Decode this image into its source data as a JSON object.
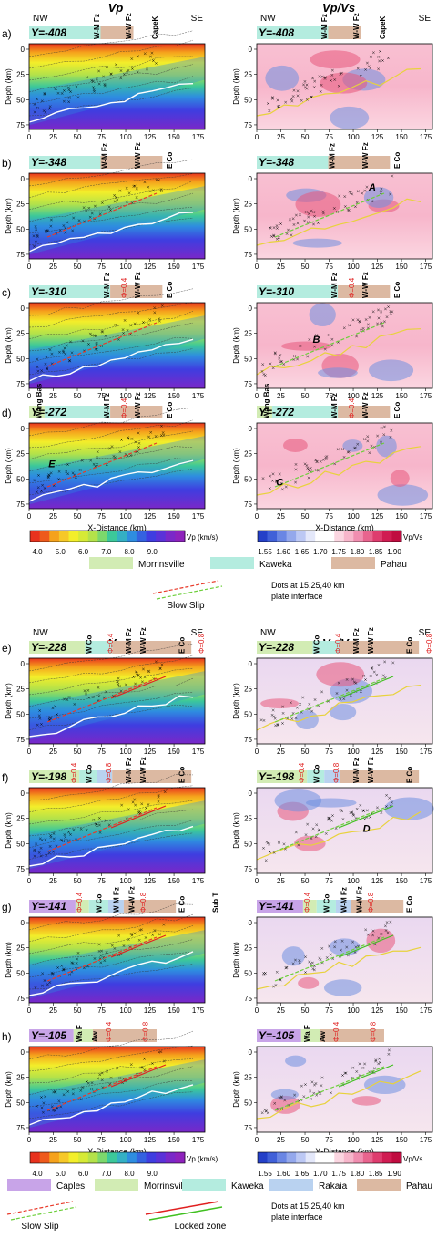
{
  "columns": {
    "vp": "Vp",
    "vpvs": "Vp/Vs"
  },
  "orientation": {
    "left": "NW",
    "right": "SE"
  },
  "axes": {
    "ylabel": "Depth (km)",
    "xlabel": "X-Distance (km)",
    "xticks": [
      "0",
      "25",
      "50",
      "75",
      "100",
      "125",
      "150",
      "175"
    ],
    "yticks": [
      "0",
      "25",
      "50",
      "75"
    ]
  },
  "colors": {
    "morrinsville": "#d2ecb4",
    "kaweka": "#b4ecdf",
    "pahau": "#dcb9a2",
    "caples": "#c8a4e8",
    "rakaia": "#b9d2f0",
    "slow_slip_red": "#e83a2a",
    "slow_slip_green": "#6ccf3a",
    "locked_red": "#e02020",
    "locked_green": "#40c020",
    "contour_white": "#ffffff",
    "contour_yellow": "#e8d23c"
  },
  "panels": [
    {
      "letter": "a)",
      "y_label": "Y=-408",
      "terranes": [
        {
          "c": "kaweka",
          "x0": 0,
          "x1": 74
        },
        {
          "c": "pahau",
          "x0": 74,
          "x1": 108
        }
      ],
      "faults": [
        {
          "name": "W-M Fz",
          "x": 70
        },
        {
          "name": "W-W Fz",
          "x": 103
        },
        {
          "name": "CapeK",
          "x": 130
        }
      ],
      "markers": [],
      "letters_vp": [],
      "letters_vpvs": []
    },
    {
      "letter": "b)",
      "y_label": "Y=-348",
      "terranes": [
        {
          "c": "kaweka",
          "x0": 0,
          "x1": 74
        },
        {
          "c": "pahau",
          "x0": 74,
          "x1": 138
        }
      ],
      "faults": [
        {
          "name": "W-M Fz",
          "x": 78
        },
        {
          "name": "W-W Fz",
          "x": 112
        },
        {
          "name": "E Co",
          "x": 145
        }
      ],
      "markers": [],
      "letters_vp": [],
      "letters_vpvs": [
        {
          "t": "A",
          "x": 116,
          "y": 17
        }
      ]
    },
    {
      "letter": "c)",
      "y_label": "Y=-310",
      "terranes": [
        {
          "c": "kaweka",
          "x0": 0,
          "x1": 84
        },
        {
          "c": "pahau",
          "x0": 84,
          "x1": 138
        }
      ],
      "faults": [
        {
          "name": "W-M Fz",
          "x": 80
        },
        {
          "name": "W-W Fz",
          "x": 112
        },
        {
          "name": "E Co",
          "x": 145
        }
      ],
      "markers": [
        {
          "t": "Φ=0.4",
          "x": 98
        }
      ],
      "letters_vp": [],
      "letters_vpvs": [
        {
          "t": "B",
          "x": 58,
          "y": 40
        }
      ]
    },
    {
      "letter": "d)",
      "y_label": "Y=-272",
      "terranes": [
        {
          "c": "morrinsville",
          "x0": 0,
          "x1": 16
        },
        {
          "c": "kaweka",
          "x0": 16,
          "x1": 84
        },
        {
          "c": "pahau",
          "x0": 84,
          "x1": 138
        }
      ],
      "faults": [
        {
          "name": "Wang Bas",
          "x": 10
        },
        {
          "name": "W-M Fz",
          "x": 80
        },
        {
          "name": "W-W Fz",
          "x": 112
        },
        {
          "name": "E Co",
          "x": 145
        }
      ],
      "markers": [
        {
          "t": "Φ=0.4",
          "x": 98
        }
      ],
      "letters_vp": [
        {
          "t": "E",
          "x": 20,
          "y": 44
        }
      ],
      "letters_vpvs": [
        {
          "t": "C",
          "x": 20,
          "y": 62
        }
      ]
    },
    {
      "letter": "e)",
      "y_label": "Y=-228",
      "terranes": [
        {
          "c": "morrinsville",
          "x0": 0,
          "x1": 58
        },
        {
          "c": "kaweka",
          "x0": 58,
          "x1": 86
        },
        {
          "c": "pahau",
          "x0": 86,
          "x1": 168
        }
      ],
      "faults": [
        {
          "name": "W Co",
          "x": 62
        },
        {
          "name": "W-M Fz",
          "x": 103
        },
        {
          "name": "W-W Fz",
          "x": 118
        },
        {
          "name": "E Co",
          "x": 158
        }
      ],
      "markers": [
        {
          "t": "Φ=0.4",
          "x": 84
        },
        {
          "t": "Φ=0.8",
          "x": 178
        }
      ],
      "letters_vp": [],
      "letters_vpvs": []
    },
    {
      "letter": "f)",
      "y_label": "Y=-198",
      "terranes": [
        {
          "c": "morrinsville",
          "x0": 0,
          "x1": 52
        },
        {
          "c": "kaweka",
          "x0": 52,
          "x1": 70
        },
        {
          "c": "rakaia",
          "x0": 70,
          "x1": 86
        },
        {
          "c": "pahau",
          "x0": 86,
          "x1": 168
        }
      ],
      "faults": [
        {
          "name": "W Co",
          "x": 62
        },
        {
          "name": "W-M Fz",
          "x": 103
        },
        {
          "name": "W-W Fz",
          "x": 118
        },
        {
          "name": "E Co",
          "x": 158
        }
      ],
      "markers": [
        {
          "t": "Φ=0.4",
          "x": 46
        },
        {
          "t": "Φ=0.8",
          "x": 82
        }
      ],
      "letters_vp": [],
      "letters_vpvs": [
        {
          "t": "D",
          "x": 110,
          "y": 44
        }
      ]
    },
    {
      "letter": "g)",
      "y_label": "Y=-141",
      "terranes": [
        {
          "c": "caples",
          "x0": 0,
          "x1": 48
        },
        {
          "c": "morrinsville",
          "x0": 48,
          "x1": 62
        },
        {
          "c": "kaweka",
          "x0": 62,
          "x1": 82
        },
        {
          "c": "rakaia",
          "x0": 82,
          "x1": 98
        },
        {
          "c": "pahau",
          "x0": 98,
          "x1": 152
        }
      ],
      "faults": [
        {
          "name": "W Co",
          "x": 72
        },
        {
          "name": "W-M Fz",
          "x": 90
        },
        {
          "name": "W-W Fz",
          "x": 106
        },
        {
          "name": "E Co",
          "x": 158
        },
        {
          "name": "Sub T",
          "x": 193
        }
      ],
      "markers": [
        {
          "t": "Φ=0.4",
          "x": 52
        },
        {
          "t": "Φ=0.8",
          "x": 118
        }
      ],
      "letters_vp": [],
      "letters_vpvs": []
    },
    {
      "letter": "h)",
      "y_label": "Y=-105",
      "terranes": [
        {
          "c": "caples",
          "x0": 0,
          "x1": 46
        },
        {
          "c": "morrinsville",
          "x0": 46,
          "x1": 66
        },
        {
          "c": "pahau",
          "x0": 66,
          "x1": 132
        }
      ],
      "faults": [
        {
          "name": "Wa F",
          "x": 52
        },
        {
          "name": "Aw",
          "x": 68
        }
      ],
      "markers": [
        {
          "t": "Φ=0.4",
          "x": 82
        },
        {
          "t": "Φ=0.8",
          "x": 120
        }
      ],
      "letters_vp": [],
      "letters_vpvs": []
    }
  ],
  "vp_scale": {
    "ticks": [
      "4.0",
      "5.0",
      "6.0",
      "7.0",
      "8.0",
      "9.0"
    ],
    "unit": "Vp (km/s)"
  },
  "vpvs_scale": {
    "ticks": [
      "1.55",
      "1.60",
      "1.65",
      "1.70",
      "1.75",
      "1.80",
      "1.85",
      "1.90"
    ],
    "unit": "Vp/Vs"
  },
  "legend1": {
    "terranes": [
      {
        "label": "Morrinsville",
        "c": "morrinsville"
      },
      {
        "label": "Kaweka",
        "c": "kaweka"
      },
      {
        "label": "Pahau",
        "c": "pahau"
      }
    ],
    "slow_slip": "Slow Slip",
    "dots_note": "Dots at 15,25,40 km\nplate interface"
  },
  "legend2": {
    "terranes": [
      {
        "label": "Caples",
        "c": "caples"
      },
      {
        "label": "Morrinsville",
        "c": "morrinsville"
      },
      {
        "label": "Kaweka",
        "c": "kaweka"
      },
      {
        "label": "Rakaia",
        "c": "rakaia"
      },
      {
        "label": "Pahau",
        "c": "pahau"
      }
    ],
    "slow_slip": "Slow Slip",
    "locked": "Locked zone",
    "dots_note": "Dots at 15,25,40 km\nplate interface"
  }
}
